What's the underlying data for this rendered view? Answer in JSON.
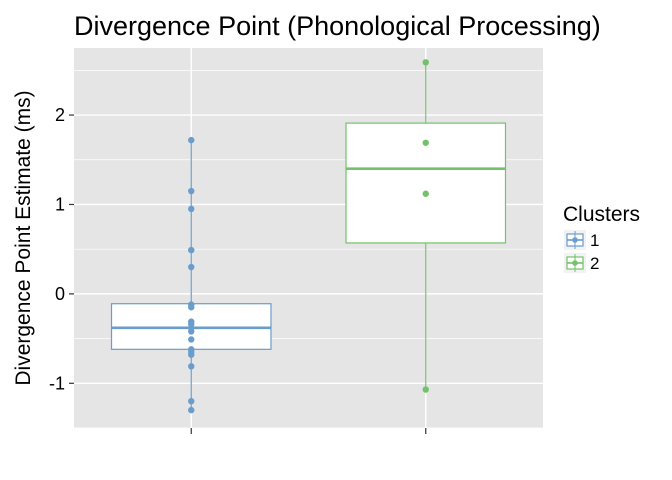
{
  "chart_data": {
    "type": "boxplot",
    "title": "Divergence Point (Phonological Processing)",
    "xlabel": "",
    "ylabel": "Divergence Point Estimate (ms)",
    "ylim": [
      -1.5,
      2.75
    ],
    "yticks": [
      -1,
      0,
      1,
      2
    ],
    "grid": true,
    "legend": {
      "title": "Clusters",
      "position": "right"
    },
    "series": [
      {
        "name": "1",
        "color": "#6a9dcb",
        "box": {
          "q1": -0.62,
          "median": -0.38,
          "q3": -0.11,
          "whisker_low": -1.3,
          "whisker_high": 1.72
        },
        "points": [
          1.72,
          1.15,
          0.95,
          0.49,
          0.3,
          -0.12,
          -0.15,
          -0.31,
          -0.34,
          -0.38,
          -0.42,
          -0.51,
          -0.62,
          -0.65,
          -0.68,
          -0.81,
          -1.2,
          -1.3
        ]
      },
      {
        "name": "2",
        "color": "#73c26b",
        "box": {
          "q1": 0.57,
          "median": 1.4,
          "q3": 1.91,
          "whisker_low": -1.07,
          "whisker_high": 2.59
        },
        "points": [
          2.59,
          1.69,
          1.12,
          -1.07
        ]
      }
    ]
  }
}
